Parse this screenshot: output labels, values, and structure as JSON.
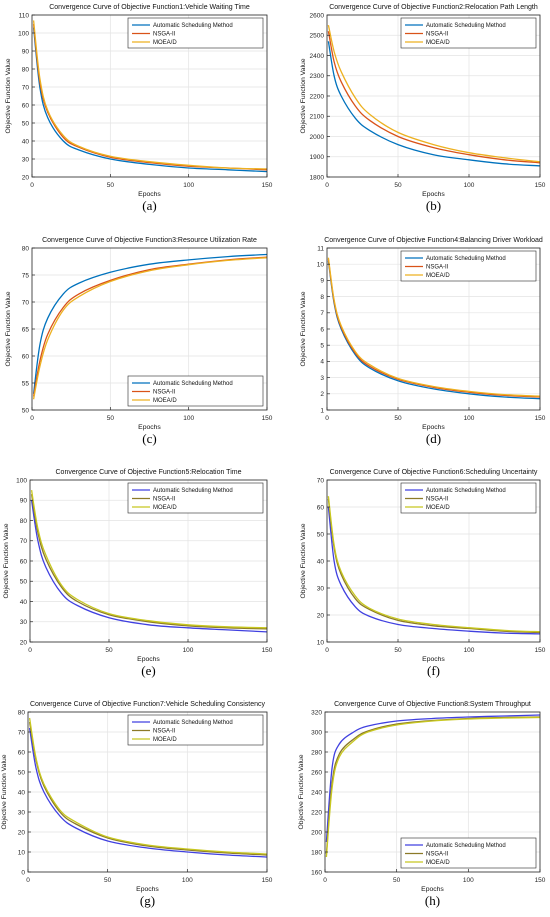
{
  "figure": {
    "panel_captions": [
      "(a)",
      "(b)",
      "(c)",
      "(d)",
      "(e)",
      "(f)",
      "(g)",
      "(h)"
    ]
  },
  "chart_data": [
    {
      "type": "line",
      "title": "Convergence Curve of Objective Function1:Vehicle Waiting Time",
      "xlabel": "Epochs",
      "ylabel": "Objective Function Value",
      "xlim": [
        0,
        150
      ],
      "ylim": [
        20,
        110
      ],
      "xticks": [
        0,
        50,
        100,
        150
      ],
      "yticks": [
        20,
        30,
        40,
        50,
        60,
        70,
        80,
        90,
        100,
        110
      ],
      "grid": true,
      "legend_placement": "top-right",
      "x": [
        1,
        5,
        10,
        20,
        30,
        50,
        75,
        100,
        125,
        150
      ],
      "series": [
        {
          "name": "Automatic Scheduling Method",
          "color": "#0072BD",
          "values": [
            103,
            70,
            53,
            40,
            35,
            30,
            27,
            25,
            24,
            23
          ]
        },
        {
          "name": "NSGA-II",
          "color": "#D95319",
          "values": [
            105,
            73,
            56,
            42,
            36.5,
            31,
            28,
            26,
            25,
            24
          ]
        },
        {
          "name": "MOEA/D",
          "color": "#EDB120",
          "values": [
            107,
            75,
            57,
            43,
            37,
            31.5,
            28.5,
            26.5,
            25,
            24.5
          ]
        }
      ]
    },
    {
      "type": "line",
      "title": "Convergence Curve of Objective Function2:Relocation Path Length",
      "xlabel": "Epochs",
      "ylabel": "Objective Function Value",
      "xlim": [
        0,
        150
      ],
      "ylim": [
        1800,
        2600
      ],
      "xticks": [
        0,
        50,
        100,
        150
      ],
      "yticks": [
        1800,
        1900,
        2000,
        2100,
        2200,
        2300,
        2400,
        2500,
        2600
      ],
      "grid": true,
      "legend_placement": "top-right",
      "x": [
        1,
        5,
        10,
        20,
        30,
        50,
        75,
        100,
        125,
        150
      ],
      "series": [
        {
          "name": "Automatic Scheduling Method",
          "color": "#0072BD",
          "values": [
            2470,
            2300,
            2200,
            2090,
            2030,
            1960,
            1910,
            1885,
            1865,
            1855
          ]
        },
        {
          "name": "NSGA-II",
          "color": "#D95319",
          "values": [
            2520,
            2370,
            2270,
            2150,
            2080,
            2000,
            1945,
            1910,
            1885,
            1870
          ]
        },
        {
          "name": "MOEA/D",
          "color": "#EDB120",
          "values": [
            2550,
            2420,
            2320,
            2190,
            2110,
            2020,
            1960,
            1920,
            1895,
            1875
          ]
        }
      ]
    },
    {
      "type": "line",
      "title": "Convergence Curve of Objective Function3:Resource Utilization Rate",
      "xlabel": "Epochs",
      "ylabel": "Objective Function Value",
      "xlim": [
        0,
        150
      ],
      "ylim": [
        50,
        80
      ],
      "xticks": [
        0,
        50,
        100,
        150
      ],
      "yticks": [
        50,
        55,
        60,
        65,
        70,
        75,
        80
      ],
      "grid": true,
      "legend_placement": "bottom-right",
      "x": [
        1,
        5,
        10,
        20,
        30,
        50,
        75,
        100,
        125,
        150
      ],
      "series": [
        {
          "name": "Automatic Scheduling Method",
          "color": "#0072BD",
          "values": [
            53,
            62,
            67,
            71.5,
            73.5,
            75.5,
            77,
            77.8,
            78.4,
            78.8
          ]
        },
        {
          "name": "NSGA-II",
          "color": "#D95319",
          "values": [
            52.5,
            59,
            64,
            69,
            71.5,
            74,
            76,
            77,
            77.8,
            78.3
          ]
        },
        {
          "name": "MOEA/D",
          "color": "#EDB120",
          "values": [
            52,
            58,
            63,
            68.5,
            71,
            73.8,
            75.8,
            76.9,
            77.7,
            78.2
          ]
        }
      ]
    },
    {
      "type": "line",
      "title": "Convergence Curve of Objective Function4:Balancing Driver Workload",
      "xlabel": "Epochs",
      "ylabel": "Objective Function Value",
      "xlim": [
        0,
        150
      ],
      "ylim": [
        1,
        11
      ],
      "xticks": [
        0,
        50,
        100,
        150
      ],
      "yticks": [
        1,
        2,
        3,
        4,
        5,
        6,
        7,
        8,
        9,
        10,
        11
      ],
      "grid": true,
      "legend_placement": "top-right",
      "x": [
        1,
        5,
        10,
        20,
        30,
        50,
        75,
        100,
        125,
        150
      ],
      "series": [
        {
          "name": "Automatic Scheduling Method",
          "color": "#0072BD",
          "values": [
            10.2,
            7.6,
            6.0,
            4.4,
            3.6,
            2.8,
            2.3,
            2.0,
            1.8,
            1.7
          ]
        },
        {
          "name": "NSGA-II",
          "color": "#D95319",
          "values": [
            10.3,
            7.7,
            6.1,
            4.5,
            3.7,
            2.9,
            2.4,
            2.1,
            1.9,
            1.8
          ]
        },
        {
          "name": "MOEA/D",
          "color": "#EDB120",
          "values": [
            10.4,
            7.8,
            6.2,
            4.6,
            3.8,
            2.95,
            2.45,
            2.15,
            1.95,
            1.85
          ]
        }
      ]
    },
    {
      "type": "line",
      "title": "Convergence Curve of Objective Function5:Relocation Time",
      "xlabel": "Epochs",
      "ylabel": "Objective Function Value",
      "xlim": [
        0,
        150
      ],
      "ylim": [
        20,
        100
      ],
      "xticks": [
        0,
        50,
        100,
        150
      ],
      "yticks": [
        20,
        30,
        40,
        50,
        60,
        70,
        80,
        90,
        100
      ],
      "grid": true,
      "legend_placement": "top-right",
      "x": [
        1,
        5,
        10,
        20,
        30,
        50,
        75,
        100,
        125,
        150
      ],
      "series": [
        {
          "name": "Automatic Scheduling Method",
          "color": "#4040E0",
          "values": [
            90,
            70,
            57,
            44,
            38,
            32,
            28.5,
            27,
            26,
            25
          ]
        },
        {
          "name": "NSGA-II",
          "color": "#8C7A28",
          "values": [
            93,
            74,
            61,
            47,
            40,
            33.5,
            30,
            28,
            27,
            26.5
          ]
        },
        {
          "name": "MOEA/D",
          "color": "#C8C820",
          "values": [
            95,
            76,
            63,
            48,
            41,
            34,
            30.5,
            28.5,
            27.5,
            27
          ]
        }
      ]
    },
    {
      "type": "line",
      "title": "Convergence Curve of Objective Function6:Scheduling Uncertainty",
      "xlabel": "Epochs",
      "ylabel": "Objective Function Value",
      "xlim": [
        0,
        150
      ],
      "ylim": [
        10,
        70
      ],
      "xticks": [
        0,
        50,
        100,
        150
      ],
      "yticks": [
        10,
        20,
        30,
        40,
        50,
        60,
        70
      ],
      "grid": true,
      "legend_placement": "top-right",
      "x": [
        1,
        5,
        10,
        20,
        30,
        50,
        75,
        100,
        125,
        150
      ],
      "series": [
        {
          "name": "Automatic Scheduling Method",
          "color": "#4040E0",
          "values": [
            60,
            40,
            31,
            23,
            19.5,
            16.5,
            15,
            14,
            13.3,
            13
          ]
        },
        {
          "name": "NSGA-II",
          "color": "#8C7A28",
          "values": [
            63,
            45,
            35,
            26,
            22,
            18,
            16,
            15,
            14,
            13.5
          ]
        },
        {
          "name": "MOEA/D",
          "color": "#C8C820",
          "values": [
            64,
            46,
            36,
            27,
            22.5,
            18.5,
            16.5,
            15.3,
            14.3,
            13.8
          ]
        }
      ]
    },
    {
      "type": "line",
      "title": "Convergence Curve of Objective Function7:Vehicle Scheduling Consistency",
      "xlabel": "Epochs",
      "ylabel": "Objective Function Value",
      "xlim": [
        0,
        150
      ],
      "ylim": [
        0,
        80
      ],
      "xticks": [
        0,
        50,
        100,
        150
      ],
      "yticks": [
        0,
        10,
        20,
        30,
        40,
        50,
        60,
        70,
        80
      ],
      "grid": true,
      "legend_placement": "top-right",
      "x": [
        1,
        5,
        10,
        20,
        30,
        50,
        75,
        100,
        125,
        150
      ],
      "series": [
        {
          "name": "Automatic Scheduling Method",
          "color": "#4040E0",
          "values": [
            72,
            52,
            40,
            28,
            22,
            15.5,
            12,
            10,
            8.5,
            7.5
          ]
        },
        {
          "name": "NSGA-II",
          "color": "#8C7A28",
          "values": [
            75,
            56,
            43,
            30,
            24,
            17,
            13,
            11,
            9.5,
            8.5
          ]
        },
        {
          "name": "MOEA/D",
          "color": "#C8C820",
          "values": [
            77,
            57,
            44,
            31,
            25,
            17.5,
            13.5,
            11.5,
            10,
            9
          ]
        }
      ]
    },
    {
      "type": "line",
      "title": "Convergence Curve of Objective Function8:System Throughput",
      "xlabel": "Epochs",
      "ylabel": "Objective Function Value",
      "xlim": [
        0,
        150
      ],
      "ylim": [
        160,
        320
      ],
      "xticks": [
        0,
        50,
        100,
        150
      ],
      "yticks": [
        160,
        180,
        200,
        220,
        240,
        260,
        280,
        300,
        320
      ],
      "grid": true,
      "legend_placement": "bottom-right",
      "x": [
        1,
        5,
        10,
        20,
        30,
        50,
        75,
        100,
        125,
        150
      ],
      "series": [
        {
          "name": "Automatic Scheduling Method",
          "color": "#4040E0",
          "values": [
            190,
            265,
            288,
            300,
            306,
            311,
            313.5,
            315,
            316,
            317
          ]
        },
        {
          "name": "NSGA-II",
          "color": "#8C7A28",
          "values": [
            178,
            250,
            278,
            293,
            301,
            308,
            311.5,
            313.5,
            314.5,
            315
          ]
        },
        {
          "name": "MOEA/D",
          "color": "#C8C820",
          "values": [
            175,
            245,
            275,
            291,
            300,
            307,
            311,
            313,
            314,
            314.5
          ]
        }
      ]
    }
  ]
}
